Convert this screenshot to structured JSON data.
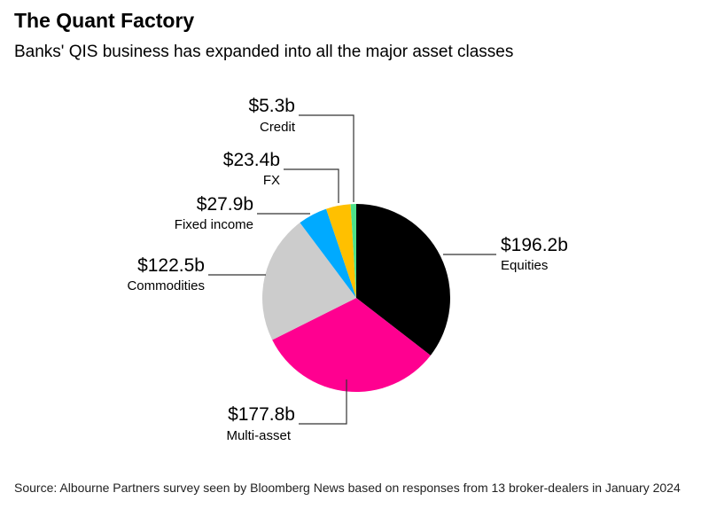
{
  "title": "The Quant Factory",
  "subtitle": "Banks' QIS business has expanded into all the major asset classes",
  "source": "Source: Albourne Partners survey seen by Bloomberg News based on responses from 13 broker-dealers in January 2024",
  "chart_data": {
    "type": "pie",
    "title": "The Quant Factory",
    "unit": "$b",
    "slices": [
      {
        "name": "Equities",
        "value": 196.2,
        "label": "$196.2b",
        "color": "#000000"
      },
      {
        "name": "Multi-asset",
        "value": 177.8,
        "label": "$177.8b",
        "color": "#ff0090"
      },
      {
        "name": "Commodities",
        "value": 122.5,
        "label": "$122.5b",
        "color": "#cccccc"
      },
      {
        "name": "Fixed income",
        "value": 27.9,
        "label": "$27.9b",
        "color": "#00aaff"
      },
      {
        "name": "FX",
        "value": 23.4,
        "label": "$23.4b",
        "color": "#ffc000"
      },
      {
        "name": "Credit",
        "value": 5.3,
        "label": "$5.3b",
        "color": "#4ce08a"
      }
    ]
  }
}
